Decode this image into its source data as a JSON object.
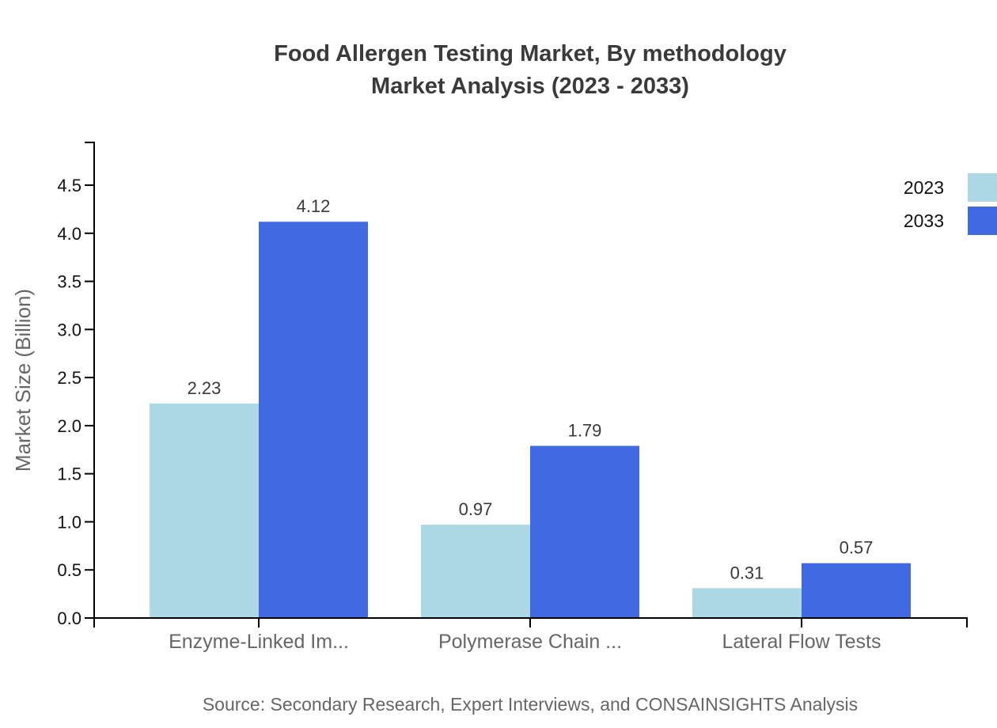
{
  "title": {
    "line1": "Food Allergen Testing Market, By methodology",
    "line2": "Market Analysis (2023 - 2033)"
  },
  "source": "Source: Secondary Research, Expert Interviews, and CONSAINSIGHTS Analysis",
  "chart_data": {
    "type": "bar",
    "title": "Food Allergen Testing Market, By methodology Market Analysis (2023 - 2033)",
    "categories": [
      "Enzyme-Linked Im...",
      "Polymerase Chain ...",
      "Lateral Flow Tests"
    ],
    "series": [
      {
        "name": "2023",
        "color": "#ADD8E6",
        "values": [
          2.23,
          0.97,
          0.31
        ]
      },
      {
        "name": "2033",
        "color": "#4169E1",
        "values": [
          4.12,
          1.79,
          0.57
        ]
      }
    ],
    "xlabel": "",
    "ylabel": "Market Size (Billion)",
    "ylim": [
      0,
      4.5
    ],
    "ytick_step": 0.5,
    "ytick_labels": [
      "0.0",
      "0.5",
      "1.0",
      "1.5",
      "2.0",
      "2.5",
      "3.0",
      "3.5",
      "4.0",
      "4.5"
    ],
    "value_labels": [
      "2.23",
      "4.12",
      "0.97",
      "1.79",
      "0.31",
      "0.57"
    ],
    "grid": false,
    "legend_position": "top-right",
    "colors": {
      "axis": "#000000",
      "tick_label": "#111111",
      "gray_label": "#666666",
      "value_label": "#3a3a3a",
      "title": "#3a3a3a",
      "background": "#ffffff"
    }
  }
}
